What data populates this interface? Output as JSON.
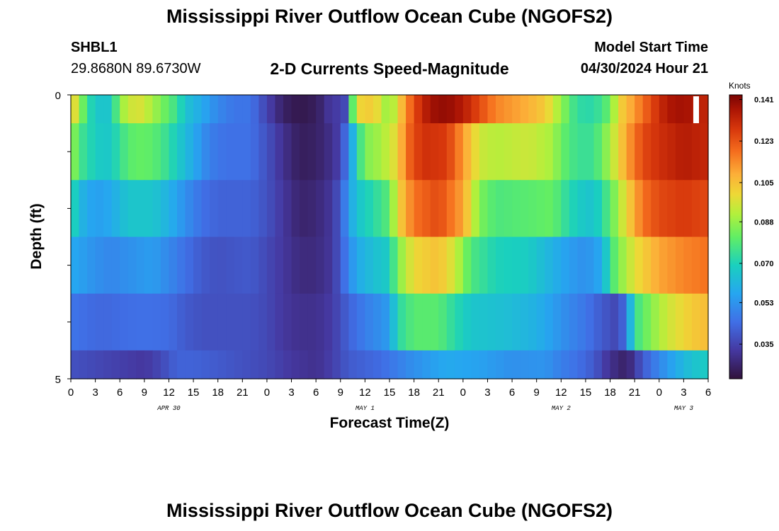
{
  "title": "Mississippi River Outflow Ocean Cube (NGOFS2)",
  "title_repeat": "Mississippi River Outflow Ocean Cube (NGOFS2)",
  "station": {
    "id": "SHBL1",
    "coords": "29.8680N  89.6730W"
  },
  "plot_title": "2-D Currents Speed-Magnitude",
  "model_start": {
    "label": "Model Start Time",
    "value": "04/30/2024 Hour 21"
  },
  "chart_data": {
    "type": "heatmap",
    "xlabel": "Forecast Time(Z)",
    "ylabel": "Depth (ft)",
    "x_range": [
      0,
      78
    ],
    "y_range": [
      0,
      5
    ],
    "x_tick_labels": [
      "0",
      "3",
      "6",
      "9",
      "12",
      "15",
      "18",
      "21",
      "0",
      "3",
      "6",
      "9",
      "12",
      "15",
      "18",
      "21",
      "0",
      "3",
      "6",
      "9",
      "12",
      "15",
      "18",
      "21",
      "0",
      "3",
      "6"
    ],
    "y_tick_labels": [
      "0",
      "5"
    ],
    "date_labels": [
      {
        "x": 12,
        "label": "APR 30"
      },
      {
        "x": 36,
        "label": "MAY 1"
      },
      {
        "x": 60,
        "label": "MAY 2"
      },
      {
        "x": 75,
        "label": "MAY 3"
      }
    ],
    "colorbar": {
      "unit": "Knots",
      "min": 0.02,
      "max": 0.143,
      "ticks": [
        "0.141",
        "0.123",
        "0.105",
        "0.088",
        "0.070",
        "0.053",
        "0.035"
      ],
      "tick_values": [
        0.141,
        0.123,
        0.105,
        0.088,
        0.07,
        0.053,
        0.035
      ]
    },
    "layers": [
      {
        "depth_range": [
          0.0,
          0.5
        ],
        "points": [
          [
            0,
            0.105
          ],
          [
            1,
            0.09
          ],
          [
            2,
            0.075
          ],
          [
            3,
            0.066
          ],
          [
            5,
            0.066
          ],
          [
            6,
            0.088
          ],
          [
            8,
            0.098
          ],
          [
            9,
            0.095
          ],
          [
            11,
            0.085
          ],
          [
            12,
            0.08
          ],
          [
            13,
            0.075
          ],
          [
            14,
            0.065
          ],
          [
            16,
            0.058
          ],
          [
            18,
            0.05
          ],
          [
            20,
            0.046
          ],
          [
            22,
            0.046
          ],
          [
            23,
            0.04
          ],
          [
            24,
            0.035
          ],
          [
            25,
            0.03
          ],
          [
            26,
            0.025
          ],
          [
            28,
            0.022
          ],
          [
            30,
            0.024
          ],
          [
            31,
            0.028
          ],
          [
            32,
            0.034
          ],
          [
            33,
            0.032
          ],
          [
            33.5,
            0.036
          ],
          [
            34,
            0.062
          ],
          [
            35,
            0.1
          ],
          [
            37,
            0.103
          ],
          [
            38,
            0.095
          ],
          [
            39,
            0.085
          ],
          [
            40,
            0.1
          ],
          [
            42,
            0.125
          ],
          [
            44,
            0.138
          ],
          [
            46,
            0.14
          ],
          [
            48,
            0.135
          ],
          [
            50,
            0.125
          ],
          [
            52,
            0.115
          ],
          [
            56,
            0.108
          ],
          [
            58,
            0.103
          ],
          [
            60,
            0.088
          ],
          [
            61,
            0.08
          ],
          [
            62,
            0.073
          ],
          [
            64,
            0.072
          ],
          [
            66,
            0.082
          ],
          [
            67,
            0.1
          ],
          [
            69,
            0.112
          ],
          [
            71,
            0.125
          ],
          [
            73,
            0.136
          ],
          [
            75,
            0.138
          ],
          [
            78,
            0.132
          ]
        ]
      },
      {
        "depth_range": [
          0.5,
          1.5
        ],
        "points": [
          [
            0,
            0.09
          ],
          [
            1,
            0.078
          ],
          [
            2,
            0.072
          ],
          [
            4,
            0.066
          ],
          [
            5,
            0.068
          ],
          [
            7,
            0.08
          ],
          [
            9,
            0.082
          ],
          [
            11,
            0.078
          ],
          [
            13,
            0.068
          ],
          [
            15,
            0.058
          ],
          [
            17,
            0.048
          ],
          [
            19,
            0.045
          ],
          [
            22,
            0.045
          ],
          [
            24,
            0.038
          ],
          [
            26,
            0.03
          ],
          [
            28,
            0.024
          ],
          [
            30,
            0.025
          ],
          [
            32,
            0.03
          ],
          [
            33,
            0.035
          ],
          [
            34,
            0.05
          ],
          [
            35,
            0.07
          ],
          [
            36,
            0.085
          ],
          [
            38,
            0.09
          ],
          [
            40,
            0.1
          ],
          [
            41,
            0.118
          ],
          [
            43,
            0.13
          ],
          [
            46,
            0.128
          ],
          [
            48,
            0.112
          ],
          [
            50,
            0.095
          ],
          [
            52,
            0.092
          ],
          [
            56,
            0.095
          ],
          [
            59,
            0.09
          ],
          [
            60,
            0.082
          ],
          [
            62,
            0.075
          ],
          [
            64,
            0.075
          ],
          [
            66,
            0.09
          ],
          [
            68,
            0.11
          ],
          [
            70,
            0.125
          ],
          [
            72,
            0.13
          ],
          [
            75,
            0.135
          ],
          [
            78,
            0.132
          ]
        ]
      },
      {
        "depth_range": [
          1.5,
          2.5
        ],
        "points": [
          [
            0,
            0.075
          ],
          [
            1,
            0.062
          ],
          [
            3,
            0.055
          ],
          [
            5,
            0.058
          ],
          [
            7,
            0.066
          ],
          [
            10,
            0.066
          ],
          [
            12,
            0.06
          ],
          [
            14,
            0.052
          ],
          [
            16,
            0.045
          ],
          [
            18,
            0.042
          ],
          [
            22,
            0.042
          ],
          [
            24,
            0.038
          ],
          [
            26,
            0.032
          ],
          [
            28,
            0.026
          ],
          [
            30,
            0.027
          ],
          [
            32,
            0.032
          ],
          [
            33,
            0.04
          ],
          [
            34,
            0.055
          ],
          [
            35,
            0.065
          ],
          [
            37,
            0.072
          ],
          [
            39,
            0.08
          ],
          [
            40,
            0.1
          ],
          [
            42,
            0.118
          ],
          [
            45,
            0.125
          ],
          [
            48,
            0.11
          ],
          [
            50,
            0.085
          ],
          [
            52,
            0.078
          ],
          [
            56,
            0.08
          ],
          [
            59,
            0.082
          ],
          [
            60,
            0.076
          ],
          [
            62,
            0.068
          ],
          [
            64,
            0.065
          ],
          [
            66,
            0.08
          ],
          [
            68,
            0.1
          ],
          [
            70,
            0.118
          ],
          [
            72,
            0.125
          ],
          [
            75,
            0.128
          ],
          [
            78,
            0.125
          ]
        ]
      },
      {
        "depth_range": [
          2.5,
          3.5
        ],
        "points": [
          [
            0,
            0.058
          ],
          [
            1,
            0.056
          ],
          [
            3,
            0.052
          ],
          [
            5,
            0.05
          ],
          [
            7,
            0.052
          ],
          [
            10,
            0.055
          ],
          [
            12,
            0.05
          ],
          [
            14,
            0.045
          ],
          [
            16,
            0.04
          ],
          [
            18,
            0.038
          ],
          [
            22,
            0.04
          ],
          [
            24,
            0.036
          ],
          [
            26,
            0.032
          ],
          [
            28,
            0.028
          ],
          [
            30,
            0.028
          ],
          [
            32,
            0.032
          ],
          [
            33,
            0.04
          ],
          [
            34,
            0.05
          ],
          [
            35,
            0.058
          ],
          [
            37,
            0.064
          ],
          [
            39,
            0.068
          ],
          [
            40,
            0.085
          ],
          [
            42,
            0.1
          ],
          [
            45,
            0.105
          ],
          [
            47,
            0.095
          ],
          [
            49,
            0.078
          ],
          [
            52,
            0.07
          ],
          [
            56,
            0.068
          ],
          [
            59,
            0.06
          ],
          [
            61,
            0.055
          ],
          [
            63,
            0.052
          ],
          [
            65,
            0.058
          ],
          [
            66,
            0.075
          ],
          [
            67,
            0.085
          ],
          [
            69,
            0.098
          ],
          [
            72,
            0.11
          ],
          [
            75,
            0.115
          ],
          [
            78,
            0.118
          ]
        ]
      },
      {
        "depth_range": [
          3.5,
          4.5
        ],
        "points": [
          [
            0,
            0.046
          ],
          [
            2,
            0.044
          ],
          [
            4,
            0.043
          ],
          [
            6,
            0.044
          ],
          [
            9,
            0.045
          ],
          [
            12,
            0.044
          ],
          [
            14,
            0.04
          ],
          [
            16,
            0.038
          ],
          [
            18,
            0.038
          ],
          [
            22,
            0.038
          ],
          [
            24,
            0.036
          ],
          [
            26,
            0.032
          ],
          [
            28,
            0.03
          ],
          [
            30,
            0.03
          ],
          [
            32,
            0.033
          ],
          [
            34,
            0.042
          ],
          [
            36,
            0.048
          ],
          [
            38,
            0.052
          ],
          [
            39,
            0.055
          ],
          [
            40,
            0.072
          ],
          [
            42,
            0.08
          ],
          [
            45,
            0.08
          ],
          [
            47,
            0.072
          ],
          [
            49,
            0.066
          ],
          [
            53,
            0.064
          ],
          [
            57,
            0.06
          ],
          [
            59,
            0.055
          ],
          [
            61,
            0.05
          ],
          [
            63,
            0.046
          ],
          [
            65,
            0.04
          ],
          [
            67,
            0.035
          ],
          [
            68,
            0.048
          ],
          [
            69,
            0.075
          ],
          [
            71,
            0.086
          ],
          [
            73,
            0.095
          ],
          [
            76,
            0.103
          ],
          [
            78,
            0.106
          ]
        ]
      },
      {
        "depth_range": [
          4.5,
          5.0
        ],
        "points": [
          [
            0,
            0.038
          ],
          [
            3,
            0.036
          ],
          [
            6,
            0.034
          ],
          [
            9,
            0.032
          ],
          [
            11,
            0.036
          ],
          [
            13,
            0.042
          ],
          [
            15,
            0.042
          ],
          [
            18,
            0.04
          ],
          [
            21,
            0.038
          ],
          [
            24,
            0.036
          ],
          [
            27,
            0.032
          ],
          [
            30,
            0.03
          ],
          [
            32,
            0.034
          ],
          [
            34,
            0.04
          ],
          [
            38,
            0.044
          ],
          [
            40,
            0.048
          ],
          [
            42,
            0.052
          ],
          [
            46,
            0.058
          ],
          [
            50,
            0.056
          ],
          [
            54,
            0.052
          ],
          [
            58,
            0.053
          ],
          [
            60,
            0.048
          ],
          [
            62,
            0.045
          ],
          [
            64,
            0.04
          ],
          [
            66,
            0.03
          ],
          [
            68,
            0.025
          ],
          [
            69,
            0.032
          ],
          [
            70,
            0.04
          ],
          [
            72,
            0.05
          ],
          [
            74,
            0.058
          ],
          [
            76,
            0.065
          ],
          [
            78,
            0.068
          ]
        ]
      }
    ]
  }
}
